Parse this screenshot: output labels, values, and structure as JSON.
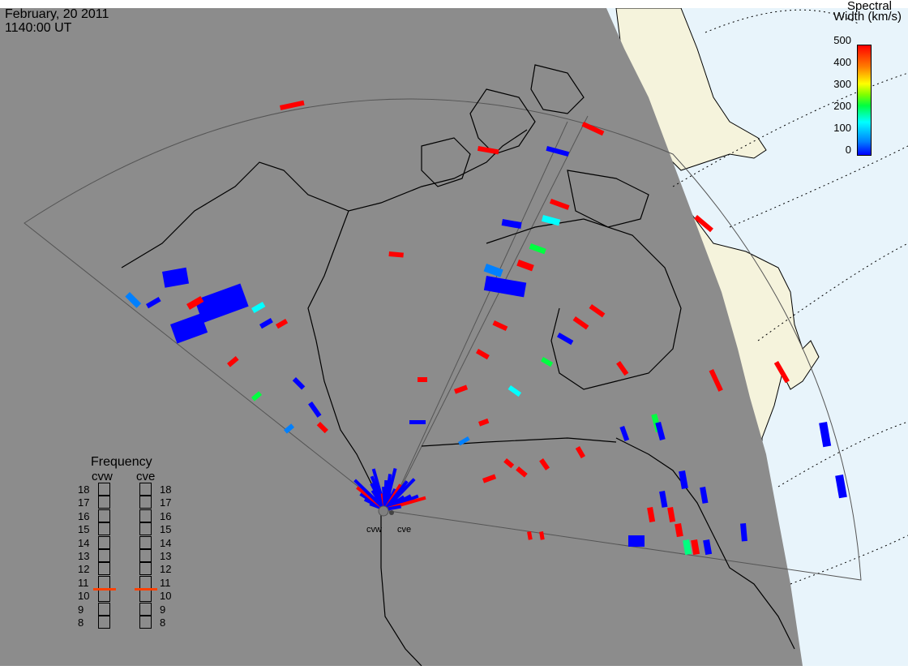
{
  "header": {
    "date": "February, 20 2011",
    "time": "1140:00 UT"
  },
  "colorbar": {
    "title_line1": "Spectral",
    "title_line2": "Width (km/s)",
    "ticks": [
      "500",
      "400",
      "300",
      "200",
      "100",
      "0"
    ]
  },
  "frequency": {
    "title": "Frequency",
    "radar_a": "cvw",
    "radar_b": "cve",
    "scale": [
      "18",
      "17",
      "16",
      "15",
      "14",
      "13",
      "12",
      "11",
      "10",
      "9",
      "8"
    ],
    "cvw_value_mhz": 10.6,
    "cve_value_mhz": 10.6,
    "marker_color": "#ff4000"
  },
  "map": {
    "sites": [
      "cvw",
      "cve"
    ],
    "colors": {
      "night": "#8c8c8c",
      "day_land": "#f5f3dc",
      "day_ocean": "#e8f4fb",
      "coast": "#000000"
    }
  }
}
